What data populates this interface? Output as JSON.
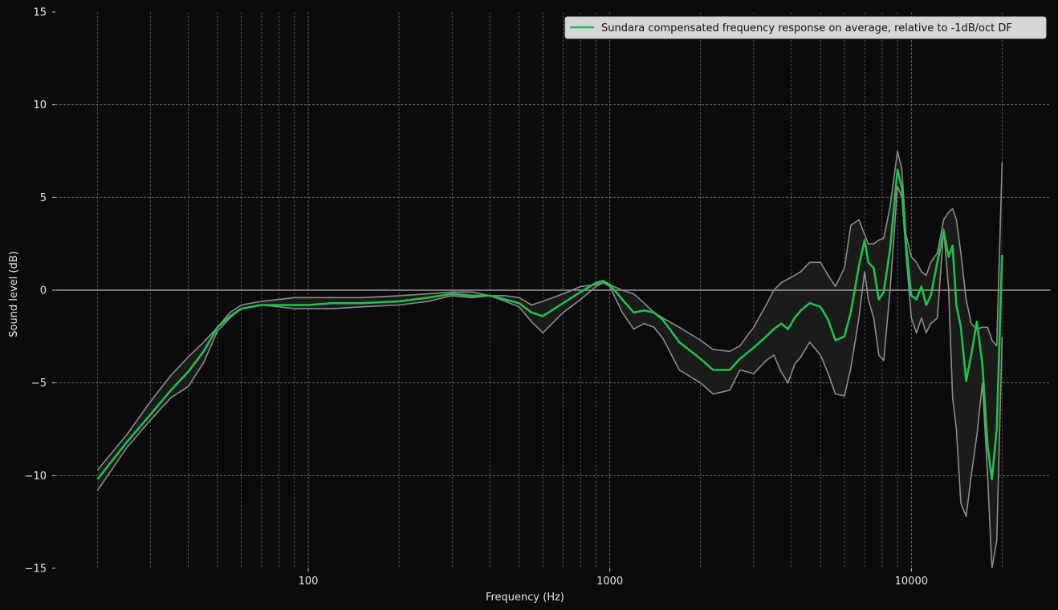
{
  "chart_data": {
    "type": "line",
    "title": "",
    "xlabel": "Frequency (Hz)",
    "ylabel": "Sound level (dB)",
    "xscale": "log",
    "xlim": [
      14.5,
      29000
    ],
    "ylim": [
      -15,
      15
    ],
    "x_tick_labels": [
      "100",
      "1000",
      "10000"
    ],
    "x_ticks": [
      100,
      1000,
      10000
    ],
    "y_ticks": [
      -15,
      -10,
      -5,
      0,
      5,
      10,
      15
    ],
    "y_tick_labels": [
      "−15",
      "−10",
      "−5",
      "0",
      "5",
      "10",
      "15"
    ],
    "grid": true,
    "reference_line": 0,
    "legend": {
      "placement": "top-right",
      "entries": [
        "Sundara compensated frequency response on average, relative to -1dB/oct DF"
      ]
    },
    "colors": {
      "background": "#0b0b0d",
      "average": "#1ec24a",
      "bounds": "#8c8c8c",
      "band_fill": "#1c1c1e",
      "grid": "#8a8a8a",
      "zero_line": "#9a9a9a"
    },
    "series": [
      {
        "name": "Sundara compensated frequency response on average, relative to -1dB/oct DF",
        "role": "average",
        "x": [
          20,
          25,
          30,
          35,
          40,
          45,
          50,
          55,
          60,
          70,
          80,
          90,
          100,
          120,
          150,
          200,
          250,
          300,
          350,
          400,
          450,
          500,
          550,
          600,
          700,
          800,
          900,
          950,
          1000,
          1100,
          1200,
          1300,
          1400,
          1500,
          1700,
          2000,
          2200,
          2500,
          2700,
          3000,
          3300,
          3500,
          3700,
          3900,
          4100,
          4300,
          4600,
          5000,
          5300,
          5600,
          6000,
          6300,
          6700,
          7000,
          7200,
          7500,
          7800,
          8100,
          8500,
          9000,
          9300,
          9600,
          10000,
          10400,
          10800,
          11200,
          11600,
          12200,
          12800,
          13300,
          13700,
          14100,
          14600,
          15200,
          15800,
          16500,
          17200,
          17900,
          18500,
          19200,
          20000
        ],
        "values": [
          -10.2,
          -8.2,
          -6.7,
          -5.4,
          -4.4,
          -3.3,
          -2.0,
          -1.4,
          -1.0,
          -0.8,
          -0.8,
          -0.8,
          -0.8,
          -0.7,
          -0.7,
          -0.6,
          -0.4,
          -0.2,
          -0.3,
          -0.3,
          -0.5,
          -0.7,
          -1.2,
          -1.4,
          -0.7,
          -0.1,
          0.4,
          0.5,
          0.3,
          -0.5,
          -1.2,
          -1.1,
          -1.2,
          -1.6,
          -2.8,
          -3.7,
          -4.3,
          -4.3,
          -3.7,
          -3.1,
          -2.5,
          -2.1,
          -1.8,
          -2.1,
          -1.5,
          -1.1,
          -0.7,
          -0.9,
          -1.6,
          -2.7,
          -2.5,
          -1.2,
          1.3,
          2.7,
          1.5,
          1.2,
          -0.5,
          -0.1,
          2.2,
          6.5,
          5.5,
          2.5,
          -0.3,
          -0.5,
          0.2,
          -0.8,
          -0.3,
          1.5,
          3.2,
          1.8,
          2.4,
          -0.8,
          -2.0,
          -4.9,
          -3.5,
          -1.7,
          -4.0,
          -8.4,
          -10.2,
          -7.5,
          1.9
        ]
      },
      {
        "name": "",
        "role": "upper",
        "x": [
          20,
          25,
          30,
          35,
          40,
          45,
          50,
          55,
          60,
          70,
          80,
          90,
          100,
          120,
          150,
          200,
          250,
          300,
          350,
          400,
          450,
          500,
          550,
          600,
          700,
          800,
          900,
          950,
          1000,
          1100,
          1200,
          1300,
          1400,
          1500,
          1700,
          2000,
          2200,
          2500,
          2700,
          3000,
          3300,
          3500,
          3700,
          3900,
          4100,
          4300,
          4600,
          5000,
          5300,
          5600,
          6000,
          6300,
          6700,
          7000,
          7200,
          7500,
          7800,
          8100,
          8500,
          9000,
          9300,
          9600,
          10000,
          10400,
          10800,
          11200,
          11600,
          12200,
          12800,
          13300,
          13700,
          14100,
          14600,
          15200,
          15800,
          16500,
          17200,
          17900,
          18500,
          19200,
          20000
        ],
        "values": [
          -9.7,
          -7.8,
          -6.0,
          -4.6,
          -3.6,
          -2.8,
          -2.0,
          -1.2,
          -0.8,
          -0.6,
          -0.5,
          -0.4,
          -0.4,
          -0.4,
          -0.4,
          -0.3,
          -0.2,
          -0.1,
          -0.1,
          -0.3,
          -0.3,
          -0.4,
          -0.8,
          -0.6,
          -0.2,
          0.2,
          0.3,
          0.4,
          0.3,
          0.0,
          -0.2,
          -0.7,
          -1.2,
          -1.5,
          -2.0,
          -2.7,
          -3.2,
          -3.3,
          -3.0,
          -2.0,
          -0.8,
          0.0,
          0.4,
          0.6,
          0.8,
          1.0,
          1.5,
          1.5,
          0.8,
          0.2,
          1.2,
          3.5,
          3.8,
          3.0,
          2.5,
          2.5,
          2.7,
          2.8,
          4.5,
          7.5,
          6.5,
          3.0,
          1.8,
          1.5,
          1.0,
          0.8,
          1.5,
          2.0,
          3.8,
          4.2,
          4.4,
          3.8,
          2.0,
          -0.5,
          -1.8,
          -2.1,
          -2.0,
          -2.0,
          -2.7,
          -3.0,
          6.9
        ]
      },
      {
        "name": "",
        "role": "lower",
        "x": [
          20,
          25,
          30,
          35,
          40,
          45,
          50,
          55,
          60,
          70,
          80,
          90,
          100,
          120,
          150,
          200,
          250,
          300,
          350,
          400,
          450,
          500,
          550,
          600,
          700,
          800,
          900,
          950,
          1000,
          1100,
          1200,
          1300,
          1400,
          1500,
          1700,
          2000,
          2200,
          2500,
          2700,
          3000,
          3300,
          3500,
          3700,
          3900,
          4100,
          4300,
          4600,
          5000,
          5300,
          5600,
          6000,
          6300,
          6700,
          7000,
          7200,
          7500,
          7800,
          8100,
          8500,
          9000,
          9300,
          9600,
          10000,
          10400,
          10800,
          11200,
          11600,
          12200,
          12800,
          13300,
          13700,
          14100,
          14600,
          15200,
          15800,
          16500,
          17200,
          17900,
          18500,
          19200,
          20000
        ],
        "values": [
          -10.8,
          -8.5,
          -7.0,
          -5.8,
          -5.2,
          -3.9,
          -2.2,
          -1.5,
          -1.0,
          -0.8,
          -0.9,
          -1.0,
          -1.0,
          -1.0,
          -0.9,
          -0.8,
          -0.6,
          -0.3,
          -0.4,
          -0.3,
          -0.6,
          -0.9,
          -1.7,
          -2.3,
          -1.2,
          -0.5,
          0.2,
          0.4,
          0.2,
          -1.2,
          -2.1,
          -1.8,
          -2.0,
          -2.6,
          -4.3,
          -5.0,
          -5.6,
          -5.4,
          -4.3,
          -4.5,
          -3.8,
          -3.5,
          -4.4,
          -5.0,
          -4.0,
          -3.6,
          -2.8,
          -3.5,
          -4.5,
          -5.6,
          -5.7,
          -4.2,
          -1.5,
          1.0,
          -0.5,
          -1.5,
          -3.5,
          -3.8,
          0.0,
          5.6,
          5.0,
          2.0,
          -1.5,
          -2.3,
          -1.5,
          -2.3,
          -1.8,
          -1.5,
          3.3,
          0.0,
          -5.8,
          -7.5,
          -11.5,
          -12.2,
          -10.0,
          -7.8,
          -5.0,
          -10.0,
          -15.0,
          -13.5,
          -2.5
        ]
      }
    ]
  }
}
